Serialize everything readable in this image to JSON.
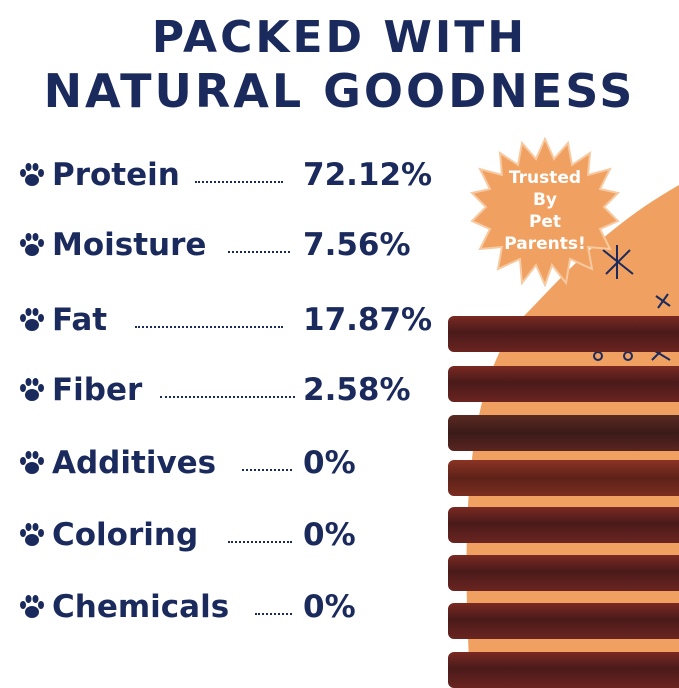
{
  "title": {
    "line1": "PACKED WITH",
    "line2": "NATURAL GOODNESS"
  },
  "nutrients": [
    {
      "label": "Protein",
      "value": "72.12%"
    },
    {
      "label": "Moisture",
      "value": "7.56%"
    },
    {
      "label": "Fat",
      "value": "17.87%"
    },
    {
      "label": "Fiber",
      "value": "2.58%"
    },
    {
      "label": "Additives",
      "value": "0%"
    },
    {
      "label": "Coloring",
      "value": "0%"
    },
    {
      "label": "Chemicals",
      "value": "0%"
    }
  ],
  "badge": {
    "line1": "Trusted",
    "line2": "By",
    "line3": "Pet",
    "line4": "Parents!"
  },
  "colors": {
    "navy": "#1b2a5c",
    "orange": "#f0a060",
    "stick": "#5a1e1c"
  },
  "icons": {
    "bullet": "paw-icon"
  }
}
